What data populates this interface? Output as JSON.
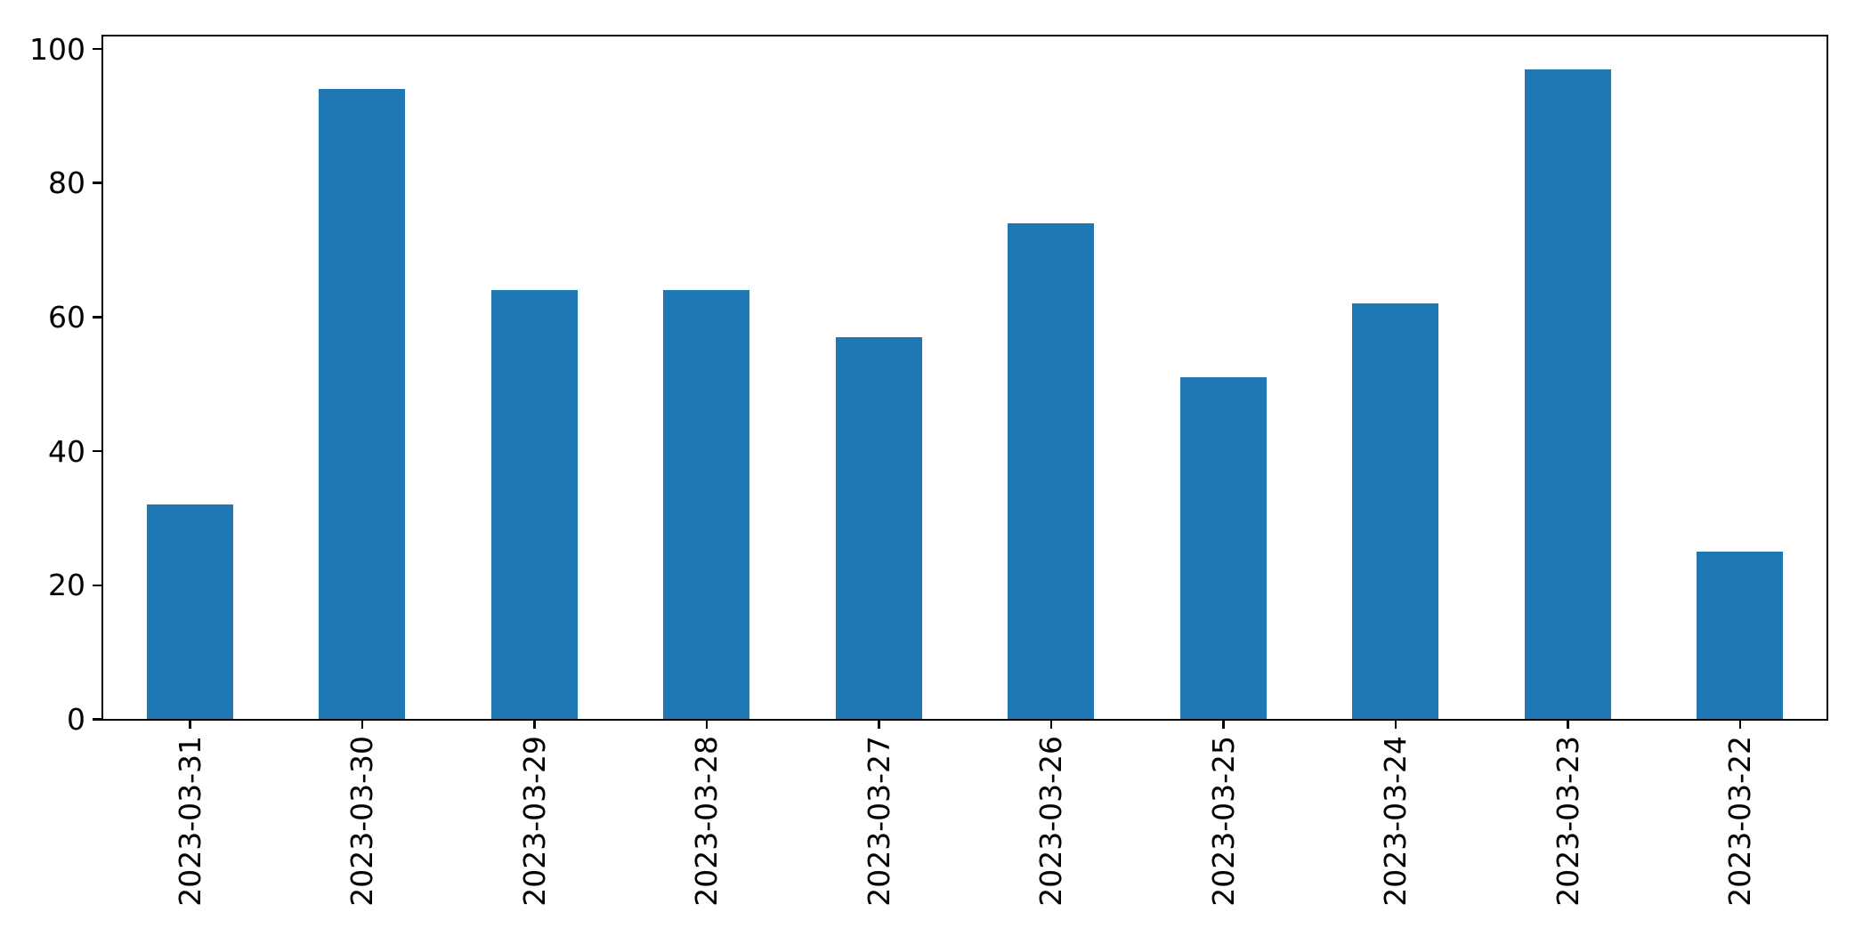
{
  "chart_data": {
    "type": "bar",
    "title": "",
    "xlabel": "",
    "ylabel": "",
    "categories": [
      "2023-03-31",
      "2023-03-30",
      "2023-03-29",
      "2023-03-28",
      "2023-03-27",
      "2023-03-26",
      "2023-03-25",
      "2023-03-24",
      "2023-03-23",
      "2023-03-22"
    ],
    "values": [
      32,
      94,
      64,
      64,
      57,
      74,
      51,
      62,
      97,
      25
    ],
    "yticks": [
      0,
      20,
      40,
      60,
      80,
      100
    ],
    "ylim": [
      0,
      101.8
    ],
    "xtick_rotation_deg": 90,
    "grid": false,
    "legend": false,
    "bar_width_fraction": 0.5
  },
  "style": {
    "bar_color": "#1f77b4",
    "axis_color": "#000000",
    "text_color": "#000000",
    "background": "#ffffff"
  }
}
